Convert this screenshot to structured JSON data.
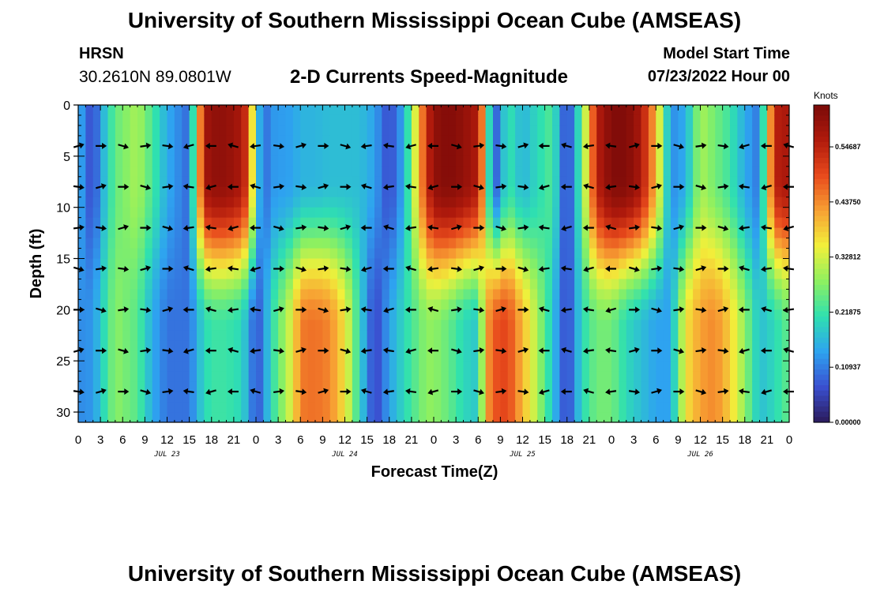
{
  "header": {
    "title": "University of Southern Mississippi Ocean Cube (AMSEAS)",
    "station": "HRSN",
    "coords": "30.2610N  89.0801W",
    "plot_title": "2-D Currents Speed-Magnitude",
    "model_start_label": "Model Start Time",
    "model_start_value": "07/23/2022 Hour 00"
  },
  "footer": {
    "title": "University of Southern Mississippi Ocean Cube (AMSEAS)"
  },
  "chart_data": {
    "type": "heatmap",
    "title": "2-D Currents Speed-Magnitude",
    "xlabel": "Forecast Time(Z)",
    "ylabel": "Depth (ft)",
    "x_tick_labels": [
      "0",
      "3",
      "6",
      "9",
      "12",
      "15",
      "18",
      "21",
      "0",
      "3",
      "6",
      "9",
      "12",
      "15",
      "18",
      "21",
      "0",
      "3",
      "6",
      "9",
      "12",
      "15",
      "18",
      "21",
      "0",
      "3",
      "6",
      "9",
      "12",
      "15",
      "18",
      "21",
      "0"
    ],
    "x_range_hours": [
      0,
      96
    ],
    "day_labels": [
      {
        "label": "JUL 23",
        "hour": 12
      },
      {
        "label": "JUL 24",
        "hour": 36
      },
      {
        "label": "JUL 25",
        "hour": 60
      },
      {
        "label": "JUL 26",
        "hour": 84
      }
    ],
    "y_ticks": [
      0,
      5,
      10,
      15,
      20,
      25,
      30
    ],
    "ylim": [
      0,
      31
    ],
    "colorbar": {
      "label": "Knots",
      "range": [
        0,
        0.63
      ],
      "ticks": [
        0.0,
        0.10937,
        0.21875,
        0.32812,
        0.4375,
        0.54687
      ],
      "tick_labels": [
        "0.00000",
        "0.10937",
        "0.21875",
        "0.32812",
        "0.43750",
        "0.54687"
      ],
      "colors": [
        "#2b1a5a",
        "#3a4fd0",
        "#2ea3f0",
        "#2fe0b0",
        "#8ef060",
        "#f2f03a",
        "#f7a033",
        "#e84a1c",
        "#b01a0c",
        "#7a0a08"
      ]
    },
    "arrow_depths": [
      4,
      8,
      12,
      16,
      20,
      24,
      28
    ],
    "arrow_hours": [
      0,
      3,
      6,
      9,
      12,
      15,
      18,
      21,
      24,
      27,
      30,
      33,
      36,
      39,
      42,
      45,
      48,
      51,
      54,
      57,
      60,
      63,
      66,
      69,
      72,
      75,
      78,
      81,
      84,
      87,
      90,
      93,
      96
    ],
    "speed_profile": {
      "hours": [
        0,
        2,
        3,
        5,
        8,
        10,
        12,
        15,
        17,
        18,
        20,
        22,
        23,
        24,
        25,
        26,
        29,
        30,
        32,
        34,
        36,
        38,
        40,
        42,
        44,
        47,
        48,
        50,
        52,
        54,
        55,
        56,
        58,
        60,
        62,
        64,
        66,
        68,
        70,
        72,
        74,
        76,
        78,
        80,
        82,
        84,
        86,
        88,
        90,
        92,
        94,
        96
      ],
      "upper_knots": [
        0.16,
        0.05,
        0.14,
        0.25,
        0.3,
        0.23,
        0.15,
        0.09,
        0.57,
        0.6,
        0.6,
        0.57,
        0.5,
        0.22,
        0.08,
        0.13,
        0.14,
        0.16,
        0.16,
        0.17,
        0.17,
        0.17,
        0.14,
        0.06,
        0.15,
        0.52,
        0.6,
        0.62,
        0.6,
        0.56,
        0.35,
        0.05,
        0.22,
        0.16,
        0.2,
        0.24,
        0.04,
        0.25,
        0.55,
        0.62,
        0.62,
        0.57,
        0.4,
        0.12,
        0.15,
        0.3,
        0.26,
        0.22,
        0.15,
        0.1,
        0.55,
        0.57
      ],
      "lower_knots": [
        0.12,
        0.13,
        0.18,
        0.28,
        0.24,
        0.15,
        0.1,
        0.1,
        0.2,
        0.22,
        0.22,
        0.2,
        0.15,
        0.06,
        0.12,
        0.2,
        0.35,
        0.45,
        0.46,
        0.44,
        0.36,
        0.2,
        0.05,
        0.14,
        0.2,
        0.28,
        0.28,
        0.25,
        0.2,
        0.18,
        0.4,
        0.48,
        0.5,
        0.4,
        0.3,
        0.18,
        0.05,
        0.2,
        0.26,
        0.26,
        0.2,
        0.17,
        0.14,
        0.14,
        0.36,
        0.42,
        0.44,
        0.38,
        0.28,
        0.17,
        0.2,
        0.25
      ]
    }
  }
}
